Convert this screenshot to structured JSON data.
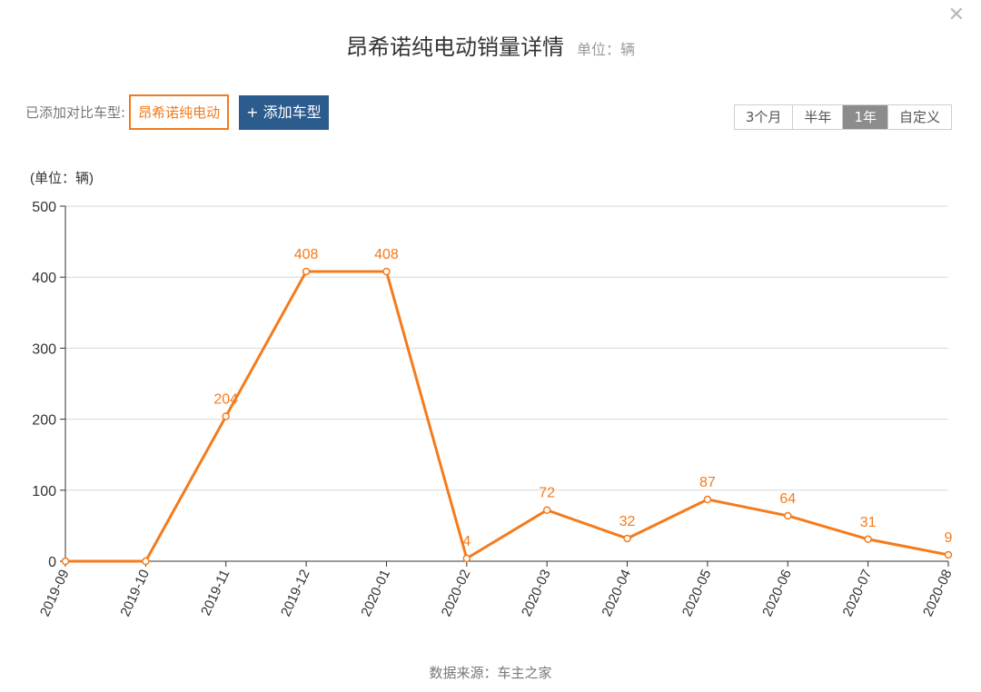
{
  "header": {
    "title": "昂希诺纯电动销量详情",
    "unit": "单位：辆",
    "close_icon": "close-icon"
  },
  "compare": {
    "label": "已添加对比车型:",
    "model": "昂希诺纯电动",
    "add_button": "+ 添加车型"
  },
  "range": {
    "options": [
      "3个月",
      "半年",
      "1年",
      "自定义"
    ],
    "selected": "1年"
  },
  "footer": {
    "source": "数据来源：车主之家"
  },
  "colors": {
    "line": "#f47b1c",
    "axis": "#333333",
    "grid": "#d8d8d8",
    "active_range": "#8c8c8c",
    "add_button": "#2c5b8e"
  },
  "chart_data": {
    "type": "line",
    "ylabel": "(单位：辆)",
    "ylim": [
      0,
      500
    ],
    "yticks": [
      0,
      100,
      200,
      300,
      400,
      500
    ],
    "grid": true,
    "x": [
      "2019-09",
      "2019-10",
      "2019-11",
      "2019-12",
      "2020-01",
      "2020-02",
      "2020-03",
      "2020-04",
      "2020-05",
      "2020-06",
      "2020-07",
      "2020-08"
    ],
    "series": [
      {
        "values": [
          0,
          0,
          204,
          408,
          408,
          4,
          72,
          32,
          87,
          64,
          31,
          9
        ],
        "labels": [
          null,
          null,
          "204",
          "408",
          "408",
          "4",
          "72",
          "32",
          "87",
          "64",
          "31",
          "9"
        ]
      }
    ]
  }
}
